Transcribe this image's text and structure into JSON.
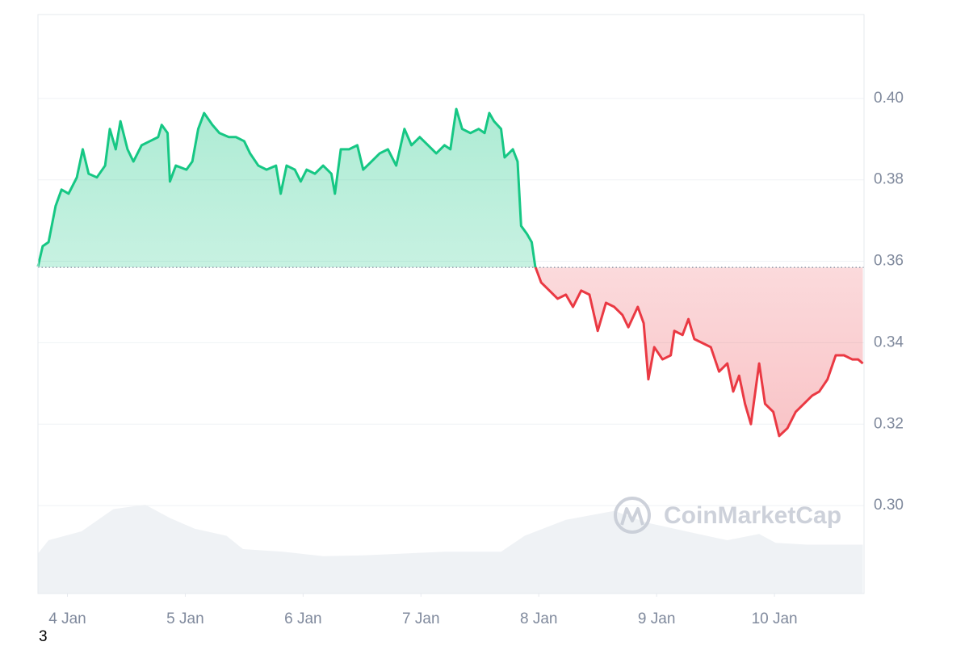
{
  "chart_data": {
    "type": "line",
    "x": [
      3.75,
      3.79,
      3.84,
      3.9,
      3.95,
      4.01,
      4.08,
      4.13,
      4.18,
      4.25,
      4.32,
      4.36,
      4.41,
      4.45,
      4.51,
      4.56,
      4.63,
      4.7,
      4.77,
      4.8,
      4.85,
      4.87,
      4.92,
      5.01,
      5.06,
      5.11,
      5.16,
      5.23,
      5.29,
      5.37,
      5.43,
      5.5,
      5.55,
      5.62,
      5.69,
      5.77,
      5.81,
      5.86,
      5.93,
      5.98,
      6.03,
      6.1,
      6.17,
      6.24,
      6.27,
      6.32,
      6.39,
      6.46,
      6.51,
      6.58,
      6.65,
      6.72,
      6.79,
      6.86,
      6.92,
      6.99,
      7.06,
      7.13,
      7.2,
      7.25,
      7.3,
      7.35,
      7.42,
      7.49,
      7.54,
      7.58,
      7.62,
      7.68,
      7.71,
      7.78,
      7.82,
      7.85,
      7.9,
      7.94,
      7.97,
      8.02,
      8.09,
      8.16,
      8.23,
      8.29,
      8.36,
      8.43,
      8.5,
      8.57,
      8.64,
      8.71,
      8.76,
      8.84,
      8.89,
      8.93,
      8.98,
      9.05,
      9.12,
      9.15,
      9.22,
      9.27,
      9.32,
      9.39,
      9.46,
      9.53,
      9.6,
      9.65,
      9.7,
      9.75,
      9.8,
      9.87,
      9.92,
      9.99,
      10.04,
      10.11,
      10.18,
      10.25,
      10.32,
      10.38,
      10.45,
      10.52,
      10.59,
      10.66,
      10.71,
      10.75
    ],
    "values": [
      0.3587,
      0.3637,
      0.3647,
      0.3736,
      0.3776,
      0.3766,
      0.3806,
      0.3875,
      0.3815,
      0.3806,
      0.3835,
      0.3925,
      0.3875,
      0.3944,
      0.3875,
      0.3845,
      0.3885,
      0.3895,
      0.3905,
      0.3935,
      0.3915,
      0.3796,
      0.3835,
      0.3825,
      0.3845,
      0.3925,
      0.3964,
      0.3935,
      0.3915,
      0.3905,
      0.3905,
      0.3895,
      0.3865,
      0.3835,
      0.3825,
      0.3835,
      0.3766,
      0.3835,
      0.3825,
      0.3796,
      0.3825,
      0.3815,
      0.3835,
      0.3815,
      0.3766,
      0.3875,
      0.3875,
      0.3885,
      0.3825,
      0.3845,
      0.3865,
      0.3875,
      0.3835,
      0.3925,
      0.3885,
      0.3905,
      0.3885,
      0.3865,
      0.3885,
      0.3875,
      0.3974,
      0.3925,
      0.3915,
      0.3925,
      0.3915,
      0.3964,
      0.3944,
      0.3925,
      0.3855,
      0.3875,
      0.3845,
      0.3687,
      0.3667,
      0.3647,
      0.3587,
      0.3548,
      0.3528,
      0.3508,
      0.3518,
      0.3488,
      0.3528,
      0.3518,
      0.3429,
      0.3498,
      0.3488,
      0.3468,
      0.3438,
      0.3488,
      0.3448,
      0.331,
      0.3389,
      0.3359,
      0.3369,
      0.3429,
      0.3419,
      0.3458,
      0.3409,
      0.3399,
      0.3389,
      0.3329,
      0.3349,
      0.328,
      0.3319,
      0.325,
      0.32,
      0.3349,
      0.325,
      0.323,
      0.3171,
      0.319,
      0.323,
      0.325,
      0.327,
      0.328,
      0.331,
      0.3369,
      0.3369,
      0.3359,
      0.3359,
      0.3349
    ],
    "baseline": 0.3585,
    "color_up": "#16c784",
    "color_down": "#ea3943",
    "xlim": [
      3.75,
      10.76
    ],
    "xticks": [
      {
        "value": 4,
        "label": "4 Jan"
      },
      {
        "value": 5,
        "label": "5 Jan"
      },
      {
        "value": 6,
        "label": "6 Jan"
      },
      {
        "value": 7,
        "label": "7 Jan"
      },
      {
        "value": 8,
        "label": "8 Jan"
      },
      {
        "value": 9,
        "label": "9 Jan"
      },
      {
        "value": 10,
        "label": "10 Jan"
      }
    ],
    "ylim": [
      0.2784,
      0.4206
    ],
    "yticks": [
      {
        "value": 0.3,
        "label": "0.30"
      },
      0.32,
      0.34,
      0.36,
      0.38,
      {
        "value": 0.4,
        "label": "0.40"
      }
    ],
    "grid": true,
    "volume": {
      "x": [
        3.75,
        3.84,
        4.12,
        4.39,
        4.66,
        4.87,
        5.08,
        5.35,
        5.49,
        5.83,
        6.17,
        6.51,
        6.86,
        7.2,
        7.68,
        7.88,
        8.23,
        8.64,
        8.91,
        9.25,
        9.6,
        9.87,
        10.01,
        10.28,
        10.75
      ],
      "values": [
        45,
        60,
        70,
        95,
        100,
        85,
        73,
        65,
        50,
        47,
        42,
        43,
        45,
        47,
        47,
        65,
        83,
        93,
        80,
        70,
        60,
        67,
        57,
        55,
        55
      ],
      "color": "#eff2f5"
    },
    "watermark": "CoinMarketCap",
    "footnote": "3"
  }
}
